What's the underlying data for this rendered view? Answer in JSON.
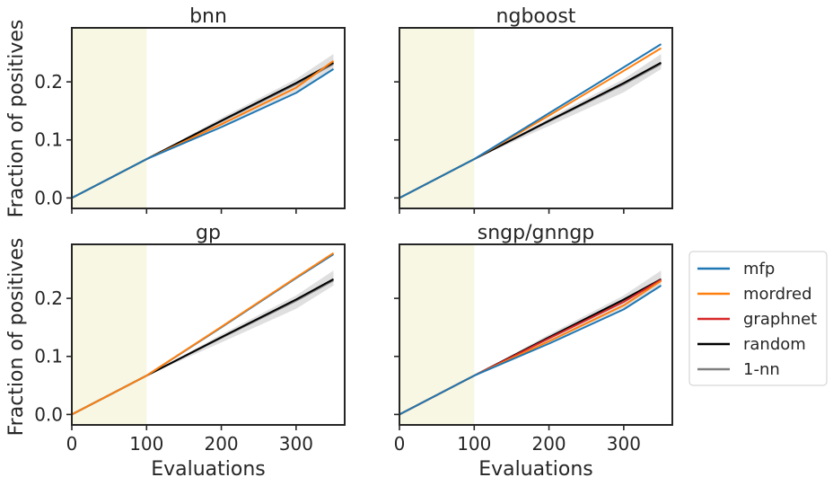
{
  "figure": {
    "shared_xlabel": "Evaluations",
    "shared_ylabel": "Fraction of positives",
    "shade_color": "#f7f7e4",
    "band_color": "#d9d9d9",
    "legend": [
      {
        "label": "mfp",
        "color": "#1f77b4"
      },
      {
        "label": "mordred",
        "color": "#ff7f0e"
      },
      {
        "label": "graphnet",
        "color": "#d62728"
      },
      {
        "label": "random",
        "color": "#000000"
      },
      {
        "label": "1-nn",
        "color": "#7f7f7f"
      }
    ]
  },
  "chart_data": [
    {
      "type": "line",
      "title": "bnn",
      "xlabel": "",
      "ylabel": "Fraction of positives",
      "xlim": [
        0,
        365
      ],
      "ylim": [
        -0.018,
        0.293
      ],
      "xticks": [
        0,
        100,
        200,
        300
      ],
      "yticks": [
        0.0,
        0.1,
        0.2
      ],
      "xtick_labels": [],
      "ytick_labels": [
        "0.0",
        "0.1",
        "0.2"
      ],
      "shaded_region": [
        0,
        100
      ],
      "random_band": [
        [
          0,
          0.0,
          0.0
        ],
        [
          100,
          0.067,
          0.067
        ],
        [
          200,
          0.124,
          0.138
        ],
        [
          300,
          0.182,
          0.205
        ],
        [
          350,
          0.222,
          0.248
        ]
      ],
      "series": [
        {
          "name": "1-nn",
          "color": "#7f7f7f",
          "x": [
            0,
            100,
            200,
            300,
            350
          ],
          "y": [
            0.0,
            0.067,
            0.132,
            0.196,
            0.231
          ]
        },
        {
          "name": "random",
          "color": "#000000",
          "x": [
            0,
            100,
            200,
            300,
            350
          ],
          "y": [
            0.0,
            0.067,
            0.133,
            0.198,
            0.233
          ]
        },
        {
          "name": "mordred",
          "color": "#ff7f0e",
          "x": [
            0,
            100,
            200,
            300,
            350
          ],
          "y": [
            0.0,
            0.067,
            0.127,
            0.19,
            0.236
          ]
        },
        {
          "name": "mfp",
          "color": "#1f77b4",
          "x": [
            0,
            100,
            200,
            300,
            350
          ],
          "y": [
            0.0,
            0.067,
            0.122,
            0.181,
            0.222
          ]
        }
      ]
    },
    {
      "type": "line",
      "title": "ngboost",
      "xlabel": "",
      "ylabel": "",
      "xlim": [
        0,
        365
      ],
      "ylim": [
        -0.018,
        0.293
      ],
      "xticks": [
        0,
        100,
        200,
        300
      ],
      "yticks": [
        0.0,
        0.1,
        0.2
      ],
      "xtick_labels": [],
      "ytick_labels": [],
      "shaded_region": [
        0,
        100
      ],
      "random_band": [
        [
          0,
          0.0,
          0.0
        ],
        [
          100,
          0.067,
          0.067
        ],
        [
          200,
          0.124,
          0.138
        ],
        [
          300,
          0.182,
          0.205
        ],
        [
          350,
          0.222,
          0.248
        ]
      ],
      "series": [
        {
          "name": "1-nn",
          "color": "#7f7f7f",
          "x": [
            0,
            100,
            200,
            300,
            350
          ],
          "y": [
            0.0,
            0.067,
            0.132,
            0.196,
            0.231
          ]
        },
        {
          "name": "random",
          "color": "#000000",
          "x": [
            0,
            100,
            200,
            300,
            350
          ],
          "y": [
            0.0,
            0.067,
            0.133,
            0.198,
            0.233
          ]
        },
        {
          "name": "mordred",
          "color": "#ff7f0e",
          "x": [
            0,
            100,
            200,
            300,
            350
          ],
          "y": [
            0.0,
            0.067,
            0.142,
            0.219,
            0.258
          ]
        },
        {
          "name": "mfp",
          "color": "#1f77b4",
          "x": [
            0,
            100,
            200,
            300,
            350
          ],
          "y": [
            0.0,
            0.067,
            0.146,
            0.225,
            0.265
          ]
        }
      ]
    },
    {
      "type": "line",
      "title": "gp",
      "xlabel": "Evaluations",
      "ylabel": "Fraction of positives",
      "xlim": [
        0,
        365
      ],
      "ylim": [
        -0.018,
        0.293
      ],
      "xticks": [
        0,
        100,
        200,
        300
      ],
      "yticks": [
        0.0,
        0.1,
        0.2
      ],
      "xtick_labels": [
        "0",
        "100",
        "200",
        "300"
      ],
      "ytick_labels": [
        "0.0",
        "0.1",
        "0.2"
      ],
      "shaded_region": [
        0,
        100
      ],
      "random_band": [
        [
          0,
          0.0,
          0.0
        ],
        [
          100,
          0.067,
          0.067
        ],
        [
          200,
          0.124,
          0.138
        ],
        [
          300,
          0.182,
          0.205
        ],
        [
          350,
          0.222,
          0.248
        ]
      ],
      "series": [
        {
          "name": "1-nn",
          "color": "#7f7f7f",
          "x": [
            0,
            100,
            200,
            300,
            350
          ],
          "y": [
            0.0,
            0.067,
            0.132,
            0.196,
            0.231
          ]
        },
        {
          "name": "random",
          "color": "#000000",
          "x": [
            0,
            100,
            200,
            300,
            350
          ],
          "y": [
            0.0,
            0.067,
            0.133,
            0.198,
            0.233
          ]
        },
        {
          "name": "mfp",
          "color": "#1f77b4",
          "x": [
            0,
            100,
            200,
            300,
            350
          ],
          "y": [
            0.0,
            0.067,
            0.15,
            0.235,
            0.276
          ]
        },
        {
          "name": "mordred",
          "color": "#ff7f0e",
          "x": [
            0,
            100,
            200,
            300,
            350
          ],
          "y": [
            0.0,
            0.067,
            0.151,
            0.236,
            0.278
          ]
        }
      ]
    },
    {
      "type": "line",
      "title": "sngp/gnngp",
      "xlabel": "Evaluations",
      "ylabel": "",
      "xlim": [
        0,
        365
      ],
      "ylim": [
        -0.018,
        0.293
      ],
      "xticks": [
        0,
        100,
        200,
        300
      ],
      "yticks": [
        0.0,
        0.1,
        0.2
      ],
      "xtick_labels": [
        "0",
        "100",
        "200",
        "300"
      ],
      "ytick_labels": [],
      "shaded_region": [
        0,
        100
      ],
      "random_band": [
        [
          0,
          0.0,
          0.0
        ],
        [
          100,
          0.067,
          0.067
        ],
        [
          200,
          0.124,
          0.138
        ],
        [
          300,
          0.182,
          0.205
        ],
        [
          350,
          0.222,
          0.248
        ]
      ],
      "series": [
        {
          "name": "1-nn",
          "color": "#7f7f7f",
          "x": [
            0,
            100,
            200,
            300,
            350
          ],
          "y": [
            0.0,
            0.067,
            0.132,
            0.196,
            0.231
          ]
        },
        {
          "name": "random",
          "color": "#000000",
          "x": [
            0,
            100,
            200,
            300,
            350
          ],
          "y": [
            0.0,
            0.067,
            0.133,
            0.198,
            0.233
          ]
        },
        {
          "name": "graphnet",
          "color": "#d62728",
          "x": [
            0,
            100,
            200,
            300,
            350
          ],
          "y": [
            0.0,
            0.067,
            0.131,
            0.194,
            0.232
          ]
        },
        {
          "name": "mordred",
          "color": "#ff7f0e",
          "x": [
            0,
            100,
            200,
            300,
            350
          ],
          "y": [
            0.0,
            0.067,
            0.126,
            0.188,
            0.23
          ]
        },
        {
          "name": "mfp",
          "color": "#1f77b4",
          "x": [
            0,
            100,
            200,
            300,
            350
          ],
          "y": [
            0.0,
            0.067,
            0.122,
            0.181,
            0.222
          ]
        }
      ]
    }
  ]
}
